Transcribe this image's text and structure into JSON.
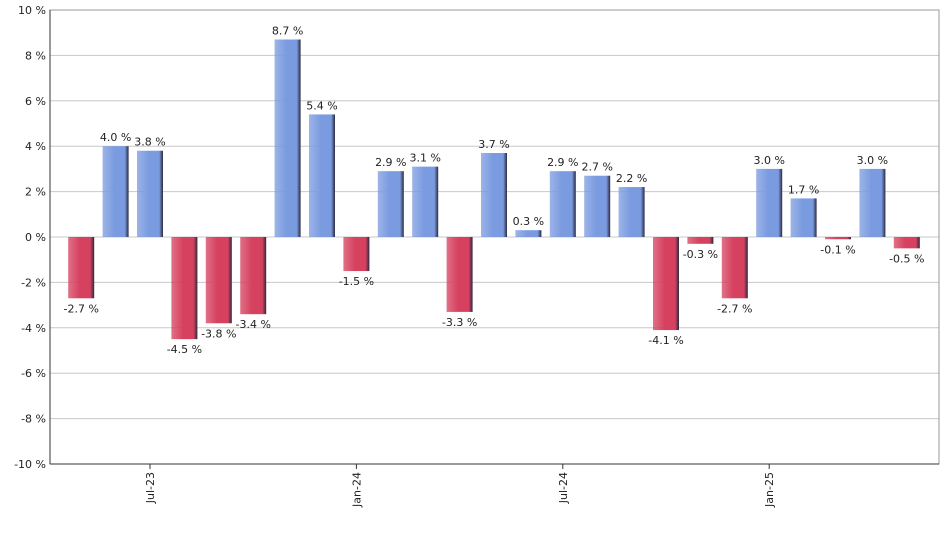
{
  "chart_data": {
    "type": "bar",
    "categories": [
      null,
      null,
      "Jul-23",
      null,
      null,
      null,
      null,
      null,
      "Jan-24",
      null,
      null,
      null,
      null,
      null,
      "Jul-24",
      null,
      null,
      null,
      null,
      null,
      "Jan-25",
      null,
      null,
      null,
      null
    ],
    "values": [
      -2.7,
      4.0,
      3.8,
      -4.5,
      -3.8,
      -3.4,
      8.7,
      5.4,
      -1.5,
      2.9,
      3.1,
      -3.3,
      3.7,
      0.3,
      2.9,
      2.7,
      2.2,
      -4.1,
      -0.3,
      -2.7,
      3.0,
      1.7,
      -0.1,
      3.0,
      -0.5
    ],
    "value_labels": [
      "-2.7 %",
      "4.0 %",
      "3.8 %",
      "-4.5 %",
      "-3.8 %",
      "-3.4 %",
      "8.7 %",
      "5.4 %",
      "-1.5 %",
      "2.9 %",
      "3.1 %",
      "-3.3 %",
      "3.7 %",
      "0.3 %",
      "2.9 %",
      "2.7 %",
      "2.2 %",
      "-4.1 %",
      "-0.3 %",
      "-2.7 %",
      "3.0 %",
      "1.7 %",
      "-0.1 %",
      "3.0 %",
      "-0.5 %"
    ],
    "positive_color": "#7b9be0",
    "negative_color": "#d6415f",
    "ylim": [
      -10,
      10
    ],
    "yticks": [
      {
        "value": -10,
        "label": "-10 %"
      },
      {
        "value": -8,
        "label": "-8 %"
      },
      {
        "value": -6,
        "label": "-6 %"
      },
      {
        "value": -4,
        "label": "-4 %"
      },
      {
        "value": -2,
        "label": "-2 %"
      },
      {
        "value": 0,
        "label": "0 %"
      },
      {
        "value": 2,
        "label": "2 %"
      },
      {
        "value": 4,
        "label": "4 %"
      },
      {
        "value": 6,
        "label": "6 %"
      },
      {
        "value": 8,
        "label": "8 %"
      },
      {
        "value": 10,
        "label": "10 %"
      }
    ],
    "grid": true
  }
}
